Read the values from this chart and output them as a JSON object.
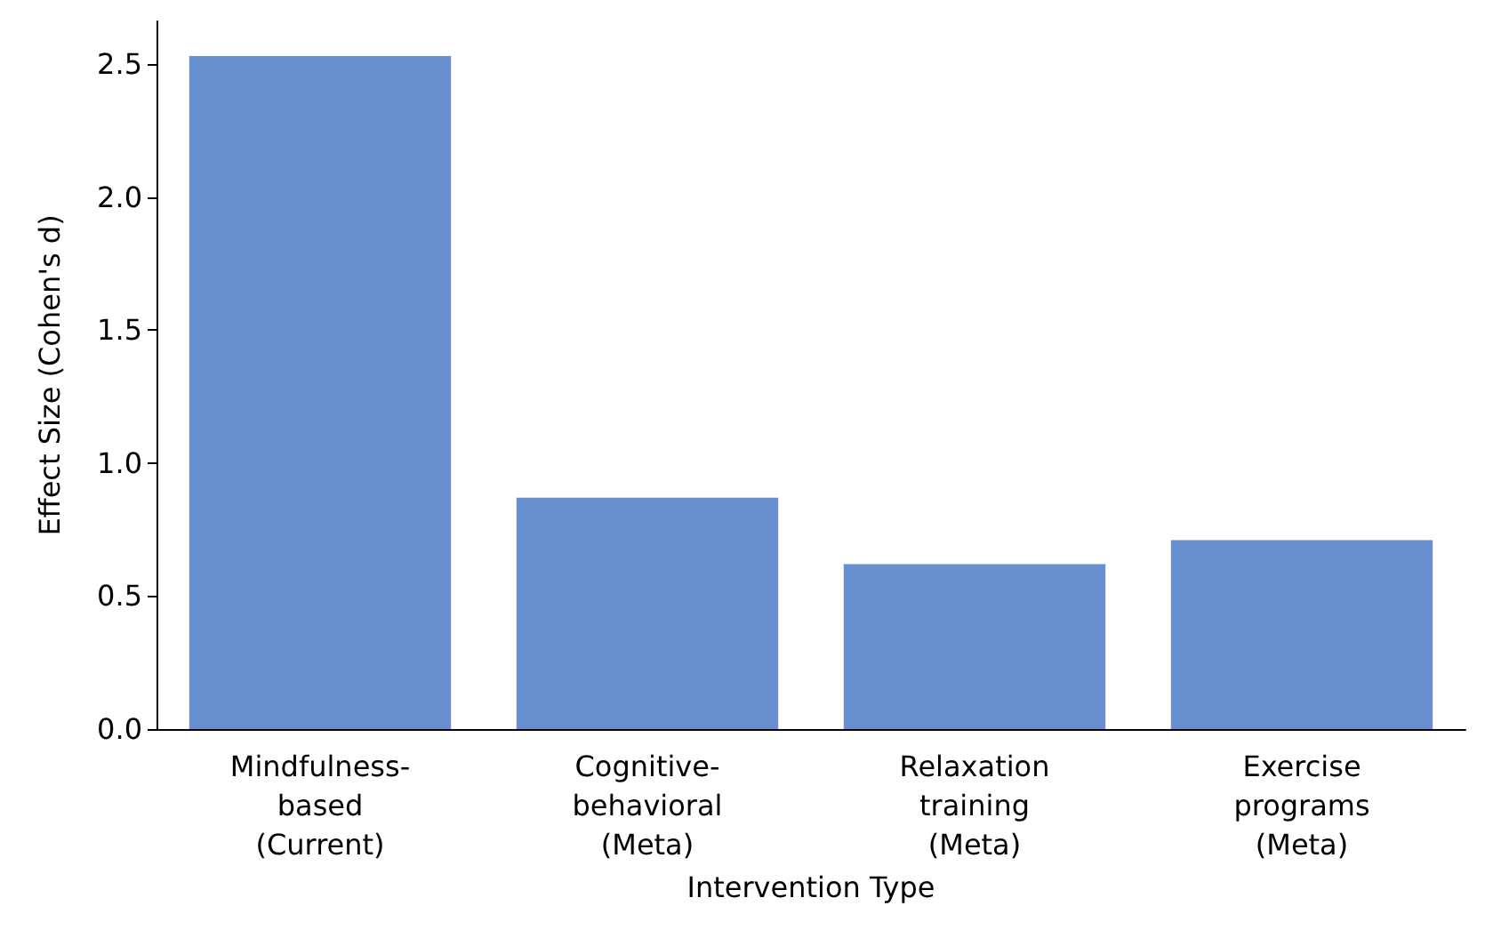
{
  "chart_data": {
    "type": "bar",
    "xlabel": "Intervention Type",
    "ylabel": "Effect Size (Cohen's d)",
    "categories": [
      "Mindfulness-\nbased\n(Current)",
      "Cognitive-\nbehavioral\n(Meta)",
      "Relaxation\ntraining\n(Meta)",
      "Exercise\nprograms\n(Meta)"
    ],
    "values": [
      2.53,
      0.87,
      0.62,
      0.71
    ],
    "color": "#6a8fd0",
    "ylim": [
      0,
      2.66
    ],
    "yticks": [
      {
        "value": 0,
        "label": "0.0"
      },
      {
        "value": 0.5,
        "label": "0.5"
      },
      {
        "value": 1,
        "label": "1.0"
      },
      {
        "value": 1.5,
        "label": "1.5"
      },
      {
        "value": 2,
        "label": "2.0"
      },
      {
        "value": 2.5,
        "label": "2.5"
      }
    ],
    "grid": false
  }
}
